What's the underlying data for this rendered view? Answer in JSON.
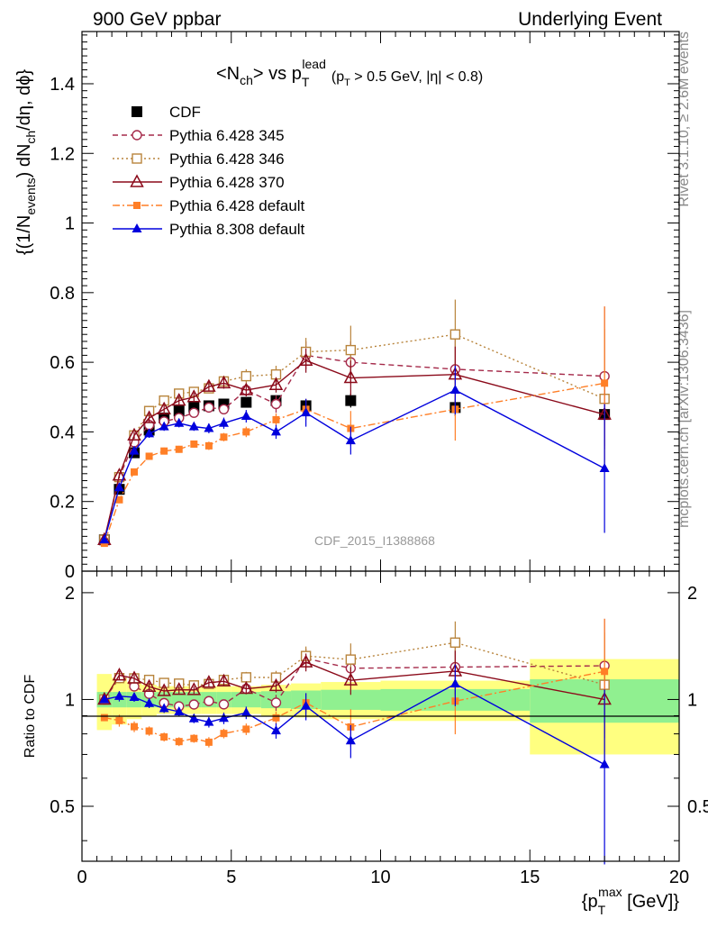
{
  "header": {
    "energy": "900 GeV ppbar",
    "process": "Underlying Event"
  },
  "title": {
    "nch_a": "<N",
    "nch_sub": "ch",
    "nch_b": "> vs p",
    "pt_sup": "lead",
    "pt_sub": "T",
    "cut_a": "(p",
    "cut_sub": "T",
    "cut_b": " > 0.5 GeV, |η| < 0.8)"
  },
  "analysis_id": "CDF_2015_I1388868",
  "side_labels": {
    "rivet": "Rivet 3.1.10, ≥ 2.6M events",
    "mcplots": "mcplots.cern.ch [arXiv:1306.3436]"
  },
  "ylabel_main": {
    "a": "{(1/N",
    "sub1": "events",
    "b": ") dN",
    "sub2": "ch",
    "c": "/dη, dϕ}"
  },
  "ylabel_ratio": "Ratio to CDF",
  "xlabel": {
    "a": "{p",
    "sup": "max",
    "sub": "T",
    "b": " [GeV]}"
  },
  "colors": {
    "cdf": "#000000",
    "p345": "#a52a4a",
    "p346": "#b8843c",
    "p370": "#8b0a1a",
    "p6def": "#ff7f27",
    "p8": "#0000dd",
    "band_outer": "#ffff80",
    "band_inner": "#90f090"
  },
  "chart_data": {
    "type": "scatter",
    "x_range": [
      0,
      20
    ],
    "main_ylim": [
      0,
      1.55
    ],
    "ratio_ylim": [
      0.35,
      2.3
    ],
    "main_yticks": [
      "0",
      "0.2",
      "0.4",
      "0.6",
      "0.8",
      "1",
      "1.2",
      "1.4"
    ],
    "ratio_yticks": [
      "0.5",
      "1",
      "2"
    ],
    "xticks": [
      "0",
      "5",
      "10",
      "15",
      "20"
    ],
    "bins": [
      [
        0.5,
        1.0
      ],
      [
        1.0,
        1.5
      ],
      [
        1.5,
        2.0
      ],
      [
        2.0,
        2.5
      ],
      [
        2.5,
        3.0
      ],
      [
        3.0,
        3.5
      ],
      [
        3.5,
        4.0
      ],
      [
        4.0,
        4.5
      ],
      [
        4.5,
        5.0
      ],
      [
        5.0,
        6.0
      ],
      [
        6.0,
        7.0
      ],
      [
        7.0,
        8.0
      ],
      [
        8.0,
        10.0
      ],
      [
        10.0,
        15.0
      ],
      [
        15.0,
        20.0
      ]
    ],
    "x": [
      0.75,
      1.25,
      1.75,
      2.25,
      2.75,
      3.25,
      3.75,
      4.25,
      4.75,
      5.5,
      6.5,
      7.5,
      9.0,
      12.5,
      17.5
    ],
    "legend_position": "upper-left",
    "series": [
      {
        "name": "CDF",
        "key": "cdf",
        "marker": "square-filled",
        "line": "none",
        "values": [
          0.09,
          0.235,
          0.34,
          0.405,
          0.44,
          0.46,
          0.47,
          0.475,
          0.48,
          0.485,
          0.49,
          0.475,
          0.49,
          0.47,
          0.45
        ],
        "err": [
          0.004,
          0.01,
          0.01,
          0.01,
          0.01,
          0.01,
          0.01,
          0.01,
          0.01,
          0.012,
          0.015,
          0.018,
          0.02,
          0.025,
          0.03
        ]
      },
      {
        "name": "Pythia 6.428 345",
        "key": "p345",
        "marker": "circle-open",
        "line": "dashed",
        "values": [
          0.09,
          0.27,
          0.37,
          0.42,
          0.43,
          0.44,
          0.455,
          0.47,
          0.465,
          0.52,
          0.48,
          0.62,
          0.6,
          0.58,
          0.56
        ],
        "err": [
          0.004,
          0.008,
          0.01,
          0.01,
          0.01,
          0.01,
          0.012,
          0.012,
          0.014,
          0.018,
          0.025,
          0.04,
          0.06,
          0.1,
          0.2
        ]
      },
      {
        "name": "Pythia 6.428 346",
        "key": "p346",
        "marker": "square-open",
        "line": "dotted",
        "values": [
          0.09,
          0.27,
          0.39,
          0.46,
          0.49,
          0.51,
          0.515,
          0.525,
          0.545,
          0.56,
          0.565,
          0.63,
          0.635,
          0.68,
          0.495
        ],
        "err": [
          0.004,
          0.008,
          0.01,
          0.012,
          0.012,
          0.012,
          0.012,
          0.014,
          0.016,
          0.02,
          0.025,
          0.04,
          0.07,
          0.1,
          0.2
        ]
      },
      {
        "name": "Pythia 6.428 370",
        "key": "p370",
        "marker": "triangle-open",
        "line": "solid",
        "values": [
          0.09,
          0.275,
          0.39,
          0.44,
          0.465,
          0.49,
          0.5,
          0.53,
          0.54,
          0.52,
          0.535,
          0.605,
          0.555,
          0.565,
          0.45
        ],
        "err": [
          0.004,
          0.008,
          0.01,
          0.012,
          0.012,
          0.012,
          0.012,
          0.014,
          0.016,
          0.018,
          0.022,
          0.035,
          0.05,
          0.08,
          0.1
        ]
      },
      {
        "name": "Pythia 6.428 default",
        "key": "p6def",
        "marker": "square-filled-small",
        "line": "dashdot",
        "values": [
          0.08,
          0.205,
          0.285,
          0.33,
          0.345,
          0.35,
          0.365,
          0.36,
          0.385,
          0.4,
          0.435,
          0.465,
          0.41,
          0.465,
          0.54
        ],
        "err": [
          0.004,
          0.008,
          0.01,
          0.01,
          0.01,
          0.01,
          0.01,
          0.012,
          0.012,
          0.015,
          0.018,
          0.03,
          0.05,
          0.09,
          0.22
        ]
      },
      {
        "name": "Pythia 8.308 default",
        "key": "p8",
        "marker": "triangle-filled",
        "line": "solid",
        "values": [
          0.09,
          0.24,
          0.345,
          0.395,
          0.415,
          0.425,
          0.415,
          0.41,
          0.425,
          0.445,
          0.4,
          0.455,
          0.375,
          0.52,
          0.295
        ],
        "err": [
          0.004,
          0.008,
          0.01,
          0.012,
          0.012,
          0.012,
          0.012,
          0.014,
          0.016,
          0.018,
          0.02,
          0.04,
          0.04,
          0.07,
          0.185
        ]
      }
    ],
    "cdf_band_inner": [
      0.05,
      0.05,
      0.05,
      0.05,
      0.05,
      0.05,
      0.05,
      0.05,
      0.05,
      0.05,
      0.055,
      0.06,
      0.065,
      0.07,
      0.14
    ],
    "cdf_band_outer": [
      0.18,
      0.15,
      0.12,
      0.1,
      0.09,
      0.09,
      0.09,
      0.09,
      0.09,
      0.09,
      0.1,
      0.11,
      0.12,
      0.13,
      0.3
    ]
  }
}
